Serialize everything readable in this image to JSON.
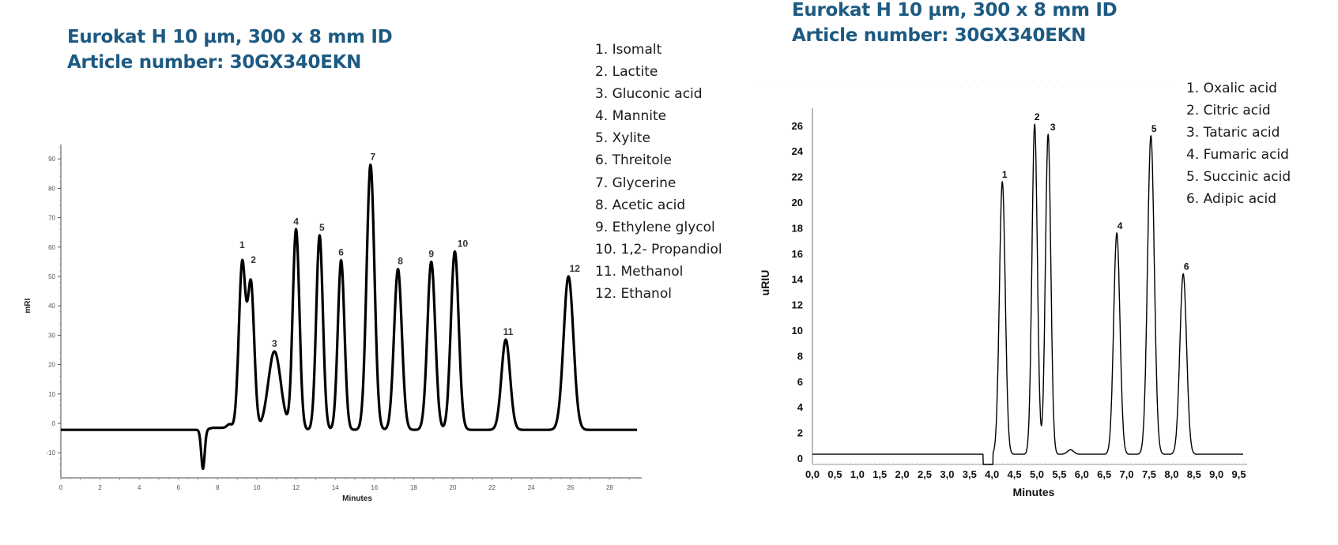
{
  "left": {
    "title_line1": "Eurokat H 10 µm, 300 x 8 mm ID",
    "title_line2": "Article number: 30GX340EKN",
    "legend": [
      "1. Isomalt",
      "2. Lactite",
      "3. Gluconic acid",
      "4. Mannite",
      "5. Xylite",
      "6. Threitole",
      "7. Glycerine",
      "8. Acetic acid",
      "9. Ethylene glycol",
      "10. 1,2- Propandiol",
      "11. Methanol",
      "12. Ethanol"
    ]
  },
  "right": {
    "title_line1": "Eurokat H 10 µm, 300 x 8 mm ID",
    "title_line2": "Article number: 30GX340EKN",
    "legend": [
      "1. Oxalic acid",
      "2. Citric acid",
      "3. Tataric acid",
      "4. Fumaric acid",
      "5. Succinic acid",
      "6. Adipic acid"
    ]
  },
  "colors": {
    "title": "#1d5a82",
    "trace": "#000000",
    "axis": "#777777"
  },
  "chart_data": [
    {
      "type": "line",
      "title": "Eurokat H 10 µm, 300 x 8 mm ID — Article number: 30GX340EKN",
      "xlabel": "Minutes",
      "ylabel": "mRI",
      "xlim": [
        0,
        29.5
      ],
      "ylim": [
        -18,
        95
      ],
      "x_ticks": [
        0,
        2,
        4,
        6,
        8,
        10,
        12,
        14,
        16,
        18,
        20,
        22,
        24,
        26,
        28
      ],
      "y_ticks": [
        -10,
        0,
        10,
        20,
        30,
        40,
        50,
        60,
        70,
        80,
        90
      ],
      "grid": false,
      "baseline": -2.2,
      "features": [
        {
          "type": "negative_dip",
          "x": 7.25,
          "y": -15.5
        },
        {
          "type": "small_bump",
          "x": 8.6,
          "y": -0.6
        }
      ],
      "peaks": [
        {
          "label": "1",
          "name": "Isomalt",
          "x": 9.25,
          "y": 58
        },
        {
          "label": "2",
          "name": "Lactite",
          "x": 9.7,
          "y": 53
        },
        {
          "label": "3",
          "name": "Gluconic acid",
          "x": 10.9,
          "y": 24.5
        },
        {
          "label": "4",
          "name": "Mannite",
          "x": 12.0,
          "y": 66
        },
        {
          "label": "5",
          "name": "Xylite",
          "x": 13.2,
          "y": 64
        },
        {
          "label": "6",
          "name": "Threitole",
          "x": 14.3,
          "y": 55.5
        },
        {
          "label": "7",
          "name": "Glycerine",
          "x": 15.8,
          "y": 88
        },
        {
          "label": "8",
          "name": "Acetic acid",
          "x": 17.2,
          "y": 52.5
        },
        {
          "label": "9",
          "name": "Ethylene glycol",
          "x": 18.9,
          "y": 55
        },
        {
          "label": "10",
          "name": "1,2- Propandiol",
          "x": 20.1,
          "y": 58.5
        },
        {
          "label": "11",
          "name": "Methanol",
          "x": 22.7,
          "y": 28.5
        },
        {
          "label": "12",
          "name": "Ethanol",
          "x": 25.9,
          "y": 50
        }
      ],
      "legend": [
        "1. Isomalt",
        "2. Lactite",
        "3. Gluconic acid",
        "4. Mannite",
        "5. Xylite",
        "6. Threitole",
        "7. Glycerine",
        "8. Acetic acid",
        "9. Ethylene glycol",
        "10. 1,2- Propandiol",
        "11. Methanol",
        "12. Ethanol"
      ],
      "legend_position": "right"
    },
    {
      "type": "line",
      "title": "Eurokat H 10 µm, 300 x 8 mm ID — Article number: 30GX340EKN",
      "xlabel": "Minutes",
      "ylabel": "uRIU",
      "xlim": [
        0,
        9.6
      ],
      "ylim": [
        -0.5,
        27.5
      ],
      "x_ticks": [
        "0,0",
        "0,5",
        "1,0",
        "1,5",
        "2,0",
        "2,5",
        "3,0",
        "3,5",
        "4,0",
        "4,5",
        "5,0",
        "5,5",
        "6,0",
        "6,5",
        "7,0",
        "7,5",
        "8,0",
        "8,5",
        "9,0",
        "9,5"
      ],
      "y_ticks": [
        0,
        2,
        4,
        6,
        8,
        10,
        12,
        14,
        16,
        18,
        20,
        22,
        24,
        26
      ],
      "grid": false,
      "baseline": 0.3,
      "features": [
        {
          "type": "negative_dip",
          "x": 3.8,
          "y": -1.0
        },
        {
          "type": "small_bump",
          "x": 5.75,
          "y": 0.4
        }
      ],
      "peaks": [
        {
          "label": "1",
          "name": "Oxalic acid",
          "x": 4.23,
          "y": 21.6
        },
        {
          "label": "2",
          "name": "Citric acid",
          "x": 4.95,
          "y": 26.1
        },
        {
          "label": "3",
          "name": "Tataric acid",
          "x": 5.25,
          "y": 25.3
        },
        {
          "label": "4",
          "name": "Fumaric acid",
          "x": 6.78,
          "y": 17.6
        },
        {
          "label": "5",
          "name": "Succinic acid",
          "x": 7.54,
          "y": 25.2
        },
        {
          "label": "6",
          "name": "Adipic acid",
          "x": 8.26,
          "y": 14.4
        }
      ],
      "legend": [
        "1. Oxalic acid",
        "2. Citric acid",
        "3. Tataric acid",
        "4. Fumaric acid",
        "5. Succinic acid",
        "6. Adipic acid"
      ],
      "legend_position": "right"
    }
  ]
}
